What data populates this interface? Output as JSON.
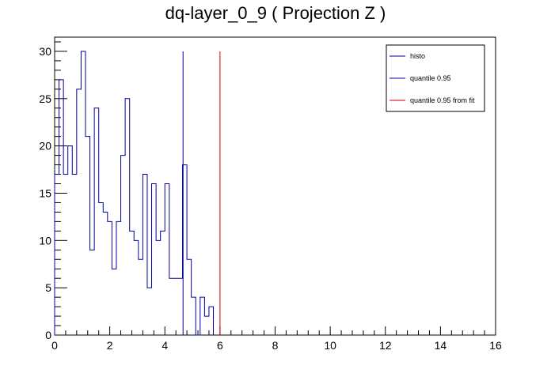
{
  "chart_data": {
    "type": "bar",
    "title": "dq-layer_0_9 ( Projection Z )",
    "xlabel": "",
    "ylabel": "",
    "xlim": [
      0,
      16
    ],
    "ylim": [
      0,
      31.5
    ],
    "x_ticks": [
      0,
      2,
      4,
      6,
      8,
      10,
      12,
      14,
      16
    ],
    "y_ticks": [
      0,
      5,
      10,
      15,
      20,
      25,
      30
    ],
    "grid": false,
    "legend_position": "top-right",
    "bin_width": 0.16,
    "series": [
      {
        "name": "histo",
        "color": "#000099",
        "style": "step",
        "x_start": 0,
        "values": [
          17,
          27,
          17,
          20,
          17,
          26,
          30,
          21,
          9,
          24,
          14,
          13,
          12,
          7,
          12,
          19,
          25,
          11,
          10,
          8,
          17,
          5,
          16,
          10,
          11,
          16,
          6,
          6,
          6,
          18,
          8,
          4,
          0,
          4,
          2,
          3
        ]
      },
      {
        "name": "quantile 0.95",
        "color": "#000099",
        "style": "vline",
        "x": 4.66,
        "y_max": 30
      },
      {
        "name": "quantile 0.95 from fit",
        "color": "#cc0000",
        "style": "vline",
        "x": 6.0,
        "y_max": 30
      }
    ]
  }
}
